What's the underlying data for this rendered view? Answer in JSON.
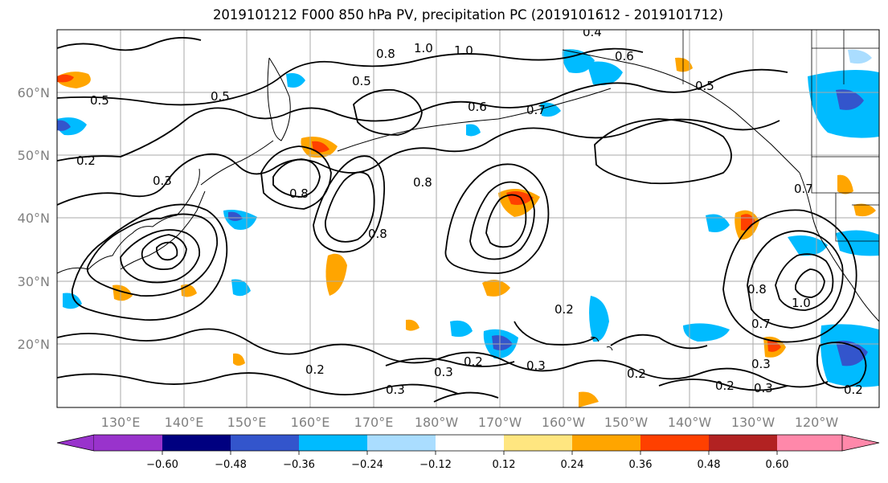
{
  "title": "2019101212 F000 850 hPa PV, precipitation PC (2019101612 - 2019101712)",
  "lat_labels": [
    "60°N",
    "50°N",
    "40°N",
    "30°N",
    "20°N"
  ],
  "lon_labels": [
    "130°E",
    "140°E",
    "150°E",
    "160°E",
    "170°E",
    "180°W",
    "170°W",
    "160°W",
    "150°W",
    "140°W",
    "130°W",
    "120°W"
  ],
  "contour_labels": [
    "0.5",
    "0.2",
    "0.8",
    "1.0",
    "0.6",
    "0.4",
    "0.7",
    "0.3"
  ],
  "colorbar": {
    "ticks": [
      "−0.60",
      "−0.48",
      "−0.36",
      "−0.24",
      "−0.12",
      "0.12",
      "0.24",
      "0.36",
      "0.48",
      "0.60"
    ],
    "colors": [
      "#9933cc",
      "#000080",
      "#3355cc",
      "#00bbff",
      "#aaddff",
      "#ffffff",
      "#ffe680",
      "#ffa500",
      "#ff4000",
      "#b22222",
      "#ff88aa"
    ]
  }
}
